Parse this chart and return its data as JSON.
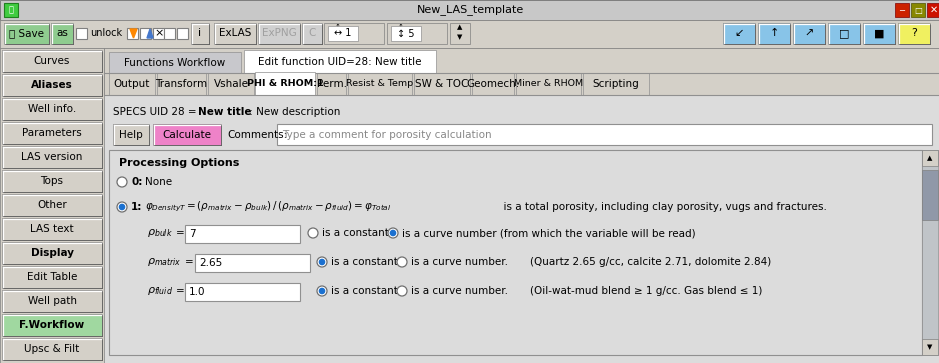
{
  "title": "New_LAS_template",
  "bg_color": "#c8c8c8",
  "panel_color": "#d4d0c8",
  "content_color": "#dcdcdc",
  "left_panel_buttons": [
    "Curves",
    "Aliases",
    "Well info.",
    "Parameters",
    "LAS version",
    "Tops",
    "Other",
    "LAS text",
    "Display",
    "Edit Table",
    "Well path",
    "F.Workflow",
    "Upsc & Filt"
  ],
  "left_panel_bold": [
    "Aliases",
    "Display",
    "F.Workflow"
  ],
  "tab1_inactive": "Functions Workflow",
  "tab1_active": "Edit function UID=28: New title",
  "tab2_buttons": [
    "Output",
    "Transform",
    "Vshale",
    "PHI & RHOM:1",
    "Perm.",
    "Resist & Temp",
    "SW & TOC",
    "Geomech.",
    "Miner & RHOM",
    "Scripting"
  ],
  "tab2_active": "PHI & RHOM:1",
  "specs_text1": "SPECS UID 28 = ",
  "specs_bold": "New title",
  "specs_text2": " : New description",
  "comments_placeholder": "Type a comment for porosity calculation",
  "processing_title": "Processing Options",
  "option1_desc": "  is a total porosity, including clay porosity, vugs and fractures.",
  "rho_bulk_val": "7",
  "rho_matrix_val": "2.65",
  "rho_fluid_val": "1.0",
  "rho_bulk_note": "is a curve number (from which the variable will be read)",
  "rho_matrix_note": "(Quartz 2.65 g/cc, calcite 2.71, dolomite 2.84)",
  "rho_fluid_note": "(Oil-wat-mud blend ≥ 1 g/cc. Gas blend ≤ 1)",
  "green_btn": "#8fcc8f",
  "pink_btn": "#ee82c8",
  "blue_tool": "#88c4e8",
  "yellow_btn": "#f0f060",
  "win_red": "#cc2200",
  "win_olive": "#888800",
  "win_darkred": "#cc1100"
}
